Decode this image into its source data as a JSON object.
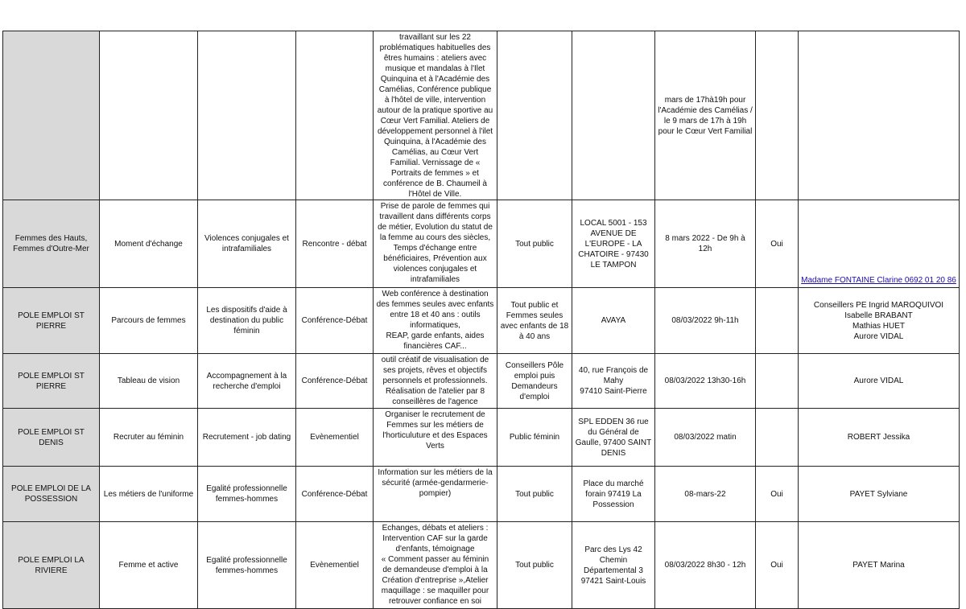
{
  "table": {
    "rows": [
      {
        "organisme": "",
        "titre": "",
        "theme": "",
        "type": "",
        "description": "travaillant sur les 22 problématiques habituelles des êtres humains : ateliers avec musique et mandalas à l'Ilet Quinquina et à l'Académie des Camélias, Conférence publique à l'hôtel de ville, intervention autour de la pratique sportive au Cœur Vert Familial. Ateliers de développement personnel à l'ilet Quinquina, à l'Académie des Camélias, au Cœur Vert Familial. Vernissage de « Portraits de femmes » et conférence de B. Chaumeil à l'Hôtel de Ville.",
        "public": "",
        "lieu": "",
        "date": "mars de 17hà19h pour l'Académie des Camélias / le 9 mars de 17h à 19h pour le Cœur Vert Familial",
        "inscription": "",
        "contact": ""
      },
      {
        "organisme": "Femmes des Hauts, Femmes d'Outre-Mer",
        "titre": "Moment d'échange",
        "theme": "Violences conjugales et intrafamiliales",
        "type": "Rencontre - débat",
        "description": "Prise de parole de femmes qui travaillent dans différents corps de métier, Evolution du statut de la femme au cours des siècles, Temps d'échange entre bénéficiaires, Prévention aux violences conjugales et intrafamiliales",
        "public": "Tout public",
        "lieu": "LOCAL 5001 - 153 AVENUE DE L'EUROPE - LA CHATOIRE - 97430 LE TAMPON",
        "date": "8 mars 2022 - De 9h à 12h",
        "inscription": "Oui",
        "contact": "Madame FONTAINE Clarine 0692 01 20 86",
        "contact_is_link": true
      },
      {
        "organisme": "POLE EMPLOI ST PIERRE",
        "titre": "Parcours de femmes",
        "theme": "Les dispositifs d'aide à destination du public féminin",
        "type": "Conférence-Débat",
        "description": "Web conférence à destination des femmes seules avec enfants entre 18 et 40 ans : outils informatiques,\nREAP, garde enfants, aides financières CAF...",
        "public": "Tout public et Femmes seules avec enfants de 18 à 40 ans",
        "lieu": "AVAYA",
        "date": "08/03/2022 9h-11h",
        "inscription": "",
        "contact": "Conseillers PE Ingrid MAROQUIVOI\nIsabelle BRABANT\nMathias HUET\nAurore VIDAL"
      },
      {
        "organisme": "POLE EMPLOI ST PIERRE",
        "titre": "Tableau de vision",
        "theme": "Accompagnement à la recherche d'emploi",
        "type": "Conférence-Débat",
        "description": "outil créatif de visualisation de ses projets, rêves et objectifs personnels et professionnels. Réalisation de l'atelier par 8 conseillères de l'agence",
        "public": "Conseillers Pôle emploi puis Demandeurs d'emploi",
        "lieu": "40, rue François de Mahy\n97410 Saint-Pierre",
        "date": "08/03/2022 13h30-16h",
        "inscription": "",
        "contact": "Aurore VIDAL"
      },
      {
        "organisme": "POLE EMPLOI ST DENIS",
        "titre": "Recruter au féminin",
        "theme": "Recrutement - job dating",
        "type": "Evènementiel",
        "description": "Organiser le recrutement de Femmes sur les métiers de l'horticuluture et des Espaces Verts",
        "public": "Public féminin",
        "lieu": "SPL EDDEN 36 rue du Général de Gaulle, 97400 SAINT DENIS",
        "date": "08/03/2022 matin",
        "inscription": "",
        "contact": "ROBERT Jessika"
      },
      {
        "organisme": "POLE EMPLOI DE LA POSSESSION",
        "titre": "Les métiers de l'uniforme",
        "theme": "Egalité professionnelle femmes-hommes",
        "type": "Conférence-Débat",
        "description": "Information sur les métiers de la sécurité (armée-gendarmerie-pompier)",
        "public": "Tout public",
        "lieu": "Place du marché forain 97419 La Possession",
        "date": "08-mars-22",
        "inscription": "Oui",
        "contact": "PAYET Sylviane"
      },
      {
        "organisme": "POLE EMPLOI LA RIVIERE",
        "titre": "Femme et active",
        "theme": "Egalité professionnelle femmes-hommes",
        "type": "Evènementiel",
        "description": "Echanges, débats et ateliers : Intervention CAF sur la garde d'enfants, témoignage\n« Comment passer au féminin de demandeuse d'emploi à la Création d'entreprise »,Atelier maquillage : se maquiller pour retrouver confiance en soi",
        "public": "Tout public",
        "lieu": "Parc des Lys 42 Chemin Départemental 3 97421 Saint-Louis",
        "date": "08/03/2022 8h30 - 12h",
        "inscription": "Oui",
        "contact": "PAYET Marina"
      }
    ]
  }
}
